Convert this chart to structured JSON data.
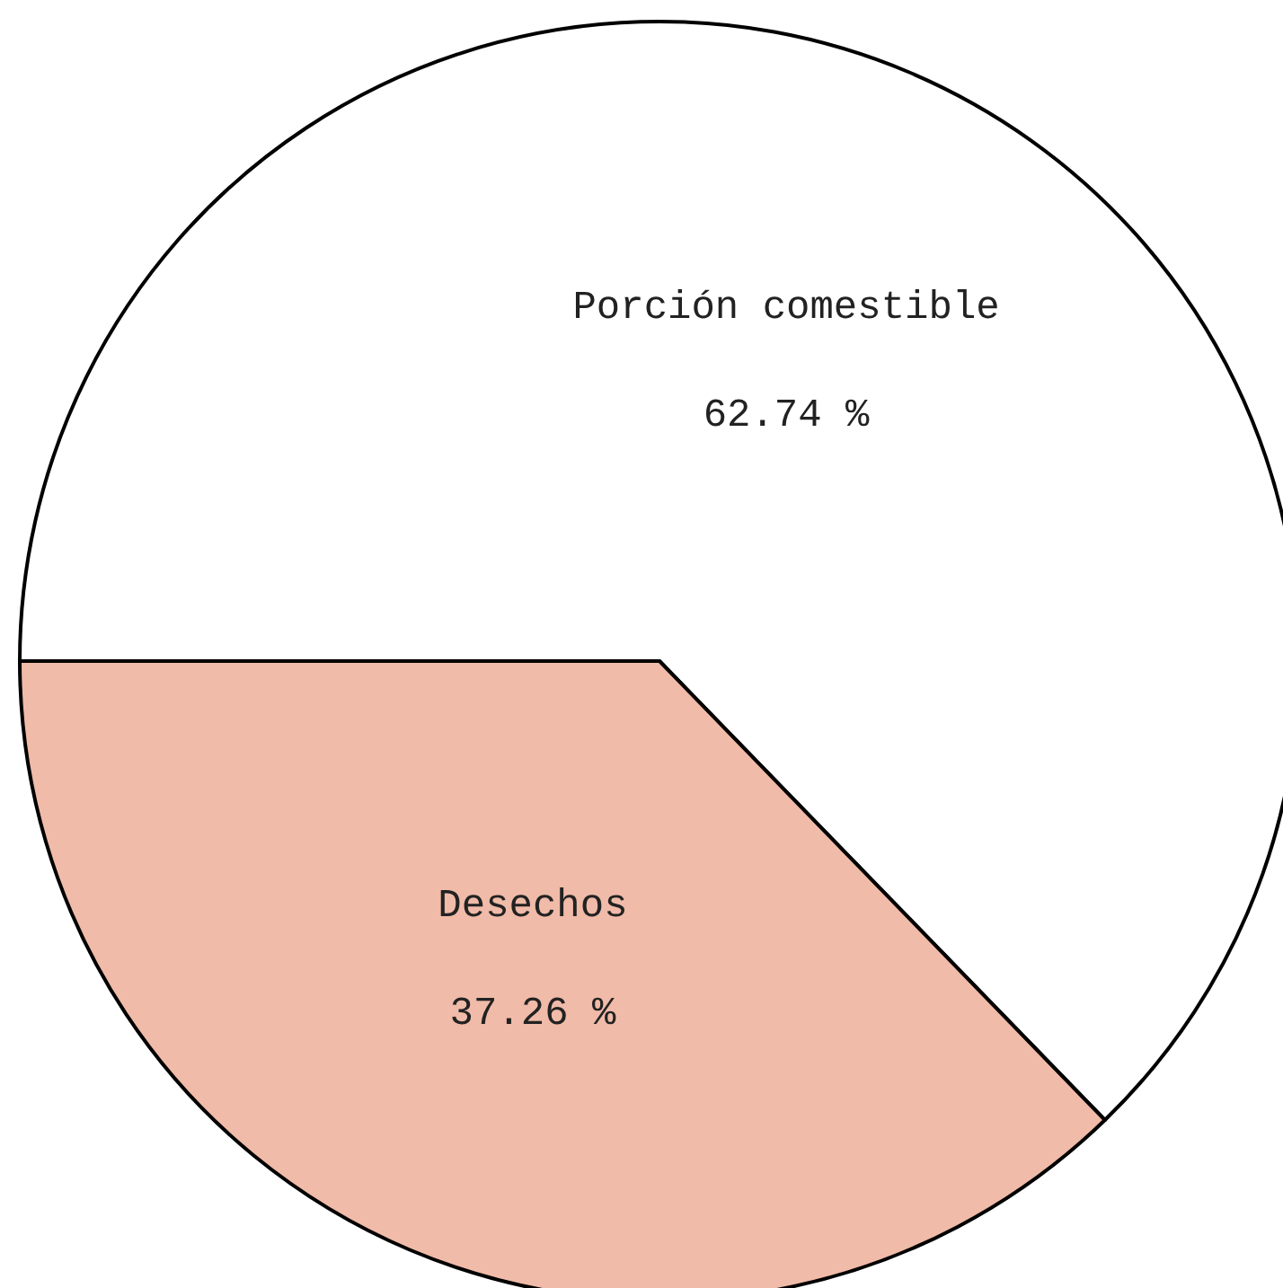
{
  "chart_data": {
    "type": "pie",
    "categories": [
      "Porción comestible",
      "Desechos"
    ],
    "values": [
      62.74,
      37.26
    ],
    "colors": [
      "#ffffff",
      "#f0bba8"
    ],
    "value_labels": [
      "62.74 %",
      "37.26 %"
    ]
  }
}
